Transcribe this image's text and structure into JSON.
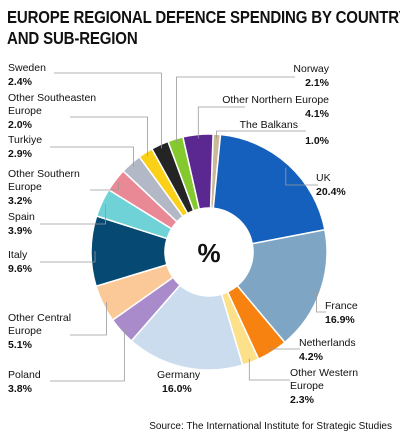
{
  "title_lines": [
    "EUROPE REGIONAL DEFENCE SPENDING BY COUNTRY",
    "AND SUB-REGION"
  ],
  "center_label": "%",
  "source": "Source: The International Institute for Strategic Studies",
  "chart_data": {
    "type": "pie",
    "title": "EUROPE REGIONAL DEFENCE SPENDING BY COUNTRY AND SUB-REGION",
    "unit": "%",
    "slices": [
      {
        "name": "The Balkans",
        "value_label": "1.0%",
        "value": 1.0,
        "color": "#c9b99a"
      },
      {
        "name": "UK",
        "value_label": "20.4%",
        "value": 20.4,
        "color": "#1560bd"
      },
      {
        "name": "France",
        "value_label": "16.9%",
        "value": 16.9,
        "color": "#7ea6c4"
      },
      {
        "name": "Netherlands",
        "value_label": "4.2%",
        "value": 4.2,
        "color": "#f7820f"
      },
      {
        "name": "Other Western Europe",
        "value_label": "2.3%",
        "value": 2.3,
        "color": "#fde08a"
      },
      {
        "name": "Germany",
        "value_label": "16.0%",
        "value": 16.0,
        "color": "#cbdcee"
      },
      {
        "name": "Poland",
        "value_label": "3.8%",
        "value": 3.8,
        "color": "#a98bcc"
      },
      {
        "name": "Other Central Europe",
        "value_label": "5.1%",
        "value": 5.1,
        "color": "#fbc898"
      },
      {
        "name": "Italy",
        "value_label": "9.6%",
        "value": 9.6,
        "color": "#064a74"
      },
      {
        "name": "Spain",
        "value_label": "3.9%",
        "value": 3.9,
        "color": "#6fd2d7"
      },
      {
        "name": "Other Southern Europe",
        "value_label": "3.2%",
        "value": 3.2,
        "color": "#ea8996"
      },
      {
        "name": "Turkiye",
        "value_label": "2.9%",
        "value": 2.9,
        "color": "#b3b8c7"
      },
      {
        "name": "Other Southeasten Europe",
        "value_label": "2.0%",
        "value": 2.0,
        "color": "#fad018"
      },
      {
        "name": "Sweden",
        "value_label": "2.4%",
        "value": 2.4,
        "color": "#242424"
      },
      {
        "name": "Norway",
        "value_label": "2.1%",
        "value": 2.1,
        "color": "#84c92e"
      },
      {
        "name": "Other Northern Europe",
        "value_label": "4.1%",
        "value": 4.1,
        "color": "#5b2891"
      }
    ]
  }
}
